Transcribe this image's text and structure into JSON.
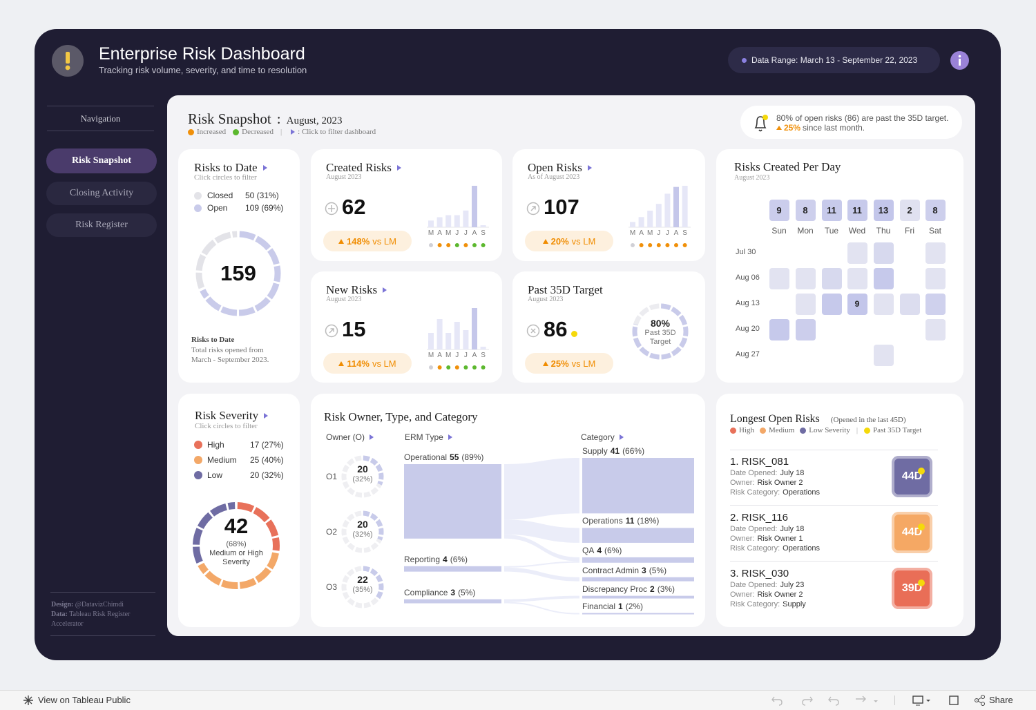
{
  "header": {
    "title": "Enterprise Risk Dashboard",
    "subtitle": "Tracking risk volume, severity, and time to resolution",
    "date_range": "Data Range: March 13 - September 22, 2023"
  },
  "nav": {
    "title": "Navigation",
    "items": [
      "Risk Snapshot",
      "Closing Activity",
      "Risk Register"
    ],
    "active": 0,
    "credits": [
      {
        "label": "Design:",
        "text": "@DatavizChimdi"
      },
      {
        "label": "Data:",
        "text": "Tableau Risk Register Accelerator"
      }
    ]
  },
  "snapshot": {
    "title": "Risk Snapshot",
    "separator": ":",
    "period": "August, 2023",
    "legend": [
      {
        "name": "Increased",
        "color": "#f0900a"
      },
      {
        "name": "Decreased",
        "color": "#5cb82e"
      }
    ],
    "divider": "|",
    "hint": ": Click to filter dashboard",
    "alert": {
      "text": "80% of open risks (86) are past the 35D target.",
      "change": "25%",
      "change_text": "since last month."
    }
  },
  "risks_to_date": {
    "title": "Risks to Date",
    "subtitle": "Click circles to filter",
    "groups": [
      {
        "name": "Closed",
        "value": 50,
        "label": "50 (31%)",
        "color": "#e3e3e8"
      },
      {
        "name": "Open",
        "value": 109,
        "label": "109 (69%)",
        "color": "#c9cbea"
      }
    ],
    "total": 159,
    "note_title": "Risks to Date",
    "note": "Total risks opened from March - September 2023."
  },
  "kpis": [
    {
      "title": "Created Risks",
      "subtitle": "August 2023",
      "value": 62,
      "change": "148%",
      "change_suffix": "vs LM",
      "months": [
        "M",
        "A",
        "M",
        "J",
        "J",
        "A",
        "S"
      ],
      "bars": [
        10,
        15,
        18,
        18,
        25,
        62,
        3
      ],
      "highlight": 5,
      "dot_colors": [
        "#d0d0d6",
        "#f0900a",
        "#f0900a",
        "#5cb82e",
        "#f0900a",
        "#5cb82e",
        "#5cb82e"
      ]
    },
    {
      "title": "Open Risks",
      "subtitle": "As of August 2023",
      "value": 107,
      "change": "20%",
      "change_suffix": "vs LM",
      "months": [
        "M",
        "A",
        "M",
        "J",
        "J",
        "A",
        "S"
      ],
      "bars": [
        14,
        27,
        44,
        62,
        89,
        107,
        110
      ],
      "highlight": 5,
      "dot_colors": [
        "#d0d0d6",
        "#f0900a",
        "#f0900a",
        "#f0900a",
        "#f0900a",
        "#f0900a",
        "#f0900a"
      ]
    },
    {
      "title": "New Risks",
      "subtitle": "August 2023",
      "value": 15,
      "change": "114%",
      "change_suffix": "vs LM",
      "months": [
        "M",
        "A",
        "M",
        "J",
        "J",
        "A",
        "S"
      ],
      "bars": [
        6,
        11,
        6,
        10,
        7,
        15,
        1
      ],
      "highlight": 5,
      "dot_colors": [
        "#d0d0d6",
        "#f0900a",
        "#5cb82e",
        "#f0900a",
        "#5cb82e",
        "#5cb82e",
        "#5cb82e"
      ]
    },
    {
      "title": "Past 35D Target",
      "subtitle": "August 2023",
      "value": 86,
      "change": "25%",
      "change_suffix": "vs LM",
      "flag_color": "#f5d90a",
      "ring": {
        "value": 80,
        "label": "80%",
        "text": "Past 35D Target"
      }
    }
  ],
  "calendar": {
    "title": "Risks Created Per Day",
    "subtitle": "August 2023",
    "days": [
      "Sun",
      "Mon",
      "Tue",
      "Wed",
      "Thu",
      "Fri",
      "Sat"
    ],
    "day_totals": [
      9,
      8,
      11,
      11,
      13,
      2,
      8
    ],
    "weeks": [
      "Jul 30",
      "Aug 06",
      "Aug 13",
      "Aug 20",
      "Aug 27"
    ],
    "counts": [
      [
        null,
        null,
        null,
        1,
        3,
        null,
        1
      ],
      [
        1,
        1,
        3,
        1,
        8,
        null,
        1
      ],
      [
        null,
        1,
        8,
        9,
        1,
        2,
        5
      ],
      [
        8,
        6,
        null,
        null,
        null,
        null,
        1
      ],
      [
        null,
        null,
        null,
        null,
        1,
        null,
        null
      ]
    ],
    "highlight": [
      2,
      3
    ]
  },
  "severity": {
    "title": "Risk Severity",
    "subtitle": "Click circles to filter",
    "levels": [
      {
        "name": "High",
        "value": 17,
        "label": "17 (27%)",
        "color": "#e8715a"
      },
      {
        "name": "Medium",
        "value": 25,
        "label": "25 (40%)",
        "color": "#f3a868"
      },
      {
        "name": "Low",
        "value": 20,
        "label": "20 (32%)",
        "color": "#6f6ca3"
      }
    ],
    "center_value": 42,
    "center_pct": "(68%)",
    "center_text": "Medium or High Severity"
  },
  "owner_type_category": {
    "title": "Risk Owner, Type, and Category",
    "columns": [
      "Owner (O)",
      "ERM Type",
      "Category"
    ],
    "color": "#c8cbea",
    "owners": [
      {
        "name": "O1",
        "value": 20,
        "pct": "(32%)"
      },
      {
        "name": "O2",
        "value": 20,
        "pct": "(32%)"
      },
      {
        "name": "O3",
        "value": 22,
        "pct": "(35%)"
      }
    ],
    "types": [
      {
        "name": "Operational",
        "value": 55,
        "pct": "(89%)"
      },
      {
        "name": "Reporting",
        "value": 4,
        "pct": "(6%)"
      },
      {
        "name": "Compliance",
        "value": 3,
        "pct": "(5%)"
      }
    ],
    "categories": [
      {
        "name": "Supply",
        "value": 41,
        "pct": "(66%)"
      },
      {
        "name": "Operations",
        "value": 11,
        "pct": "(18%)"
      },
      {
        "name": "QA",
        "value": 4,
        "pct": "(6%)"
      },
      {
        "name": "Contract Admin",
        "value": 3,
        "pct": "(5%)"
      },
      {
        "name": "Discrepancy Proc",
        "value": 2,
        "pct": "(3%)"
      },
      {
        "name": "Financial",
        "value": 1,
        "pct": "(2%)"
      }
    ]
  },
  "longest_open": {
    "title": "Longest Open Risks",
    "note": "(Opened in the last 45D)",
    "legend": [
      {
        "name": "High",
        "color": "#e8715a"
      },
      {
        "name": "Medium",
        "color": "#f3a868"
      },
      {
        "name": "Low Severity",
        "color": "#6f6ca3"
      }
    ],
    "divider": "|",
    "target_legend": {
      "name": "Past 35D Target",
      "color": "#f5d90a"
    },
    "fields": [
      "Date Opened:",
      "Owner:",
      "Risk Category:"
    ],
    "items": [
      {
        "name": "1. RISK_081",
        "details": [
          "July 18",
          "Risk Owner 2",
          "Operations"
        ],
        "age": "44D",
        "color": "#6f6ca3"
      },
      {
        "name": "2. RISK_116",
        "details": [
          "July 18",
          "Risk Owner 1",
          "Operations"
        ],
        "age": "44D",
        "color": "#f5a864"
      },
      {
        "name": "3. RISK_030",
        "details": [
          "July 23",
          "Risk Owner 2",
          "Supply"
        ],
        "age": "39D",
        "color": "#e96e57"
      }
    ]
  },
  "toolbar": {
    "view": "View on Tableau Public",
    "share": "Share"
  }
}
